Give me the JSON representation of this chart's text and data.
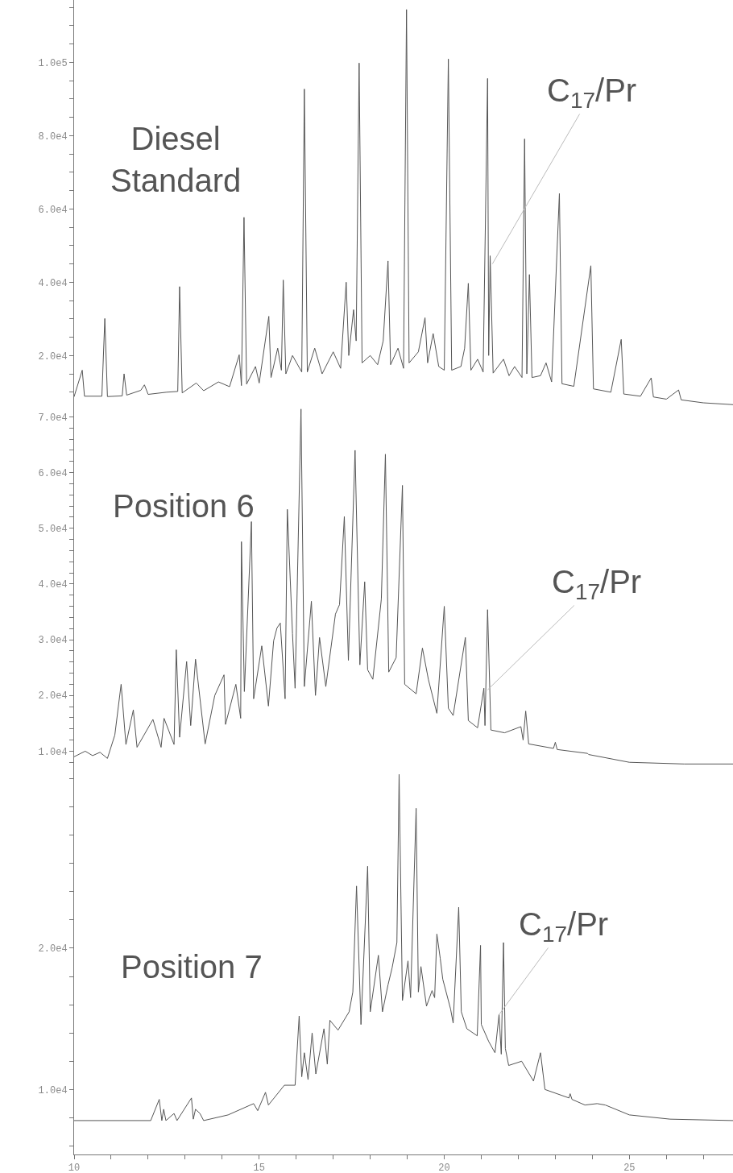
{
  "chart_data": [
    {
      "type": "line",
      "tick_labels": "y",
      "xlim": [
        10,
        27.8
      ],
      "ylim": [
        6000,
        117000
      ],
      "yticks": [
        {
          "value": 10000,
          "label": null
        },
        {
          "value": 15000,
          "label": null
        },
        {
          "value": 20000,
          "label": "2.0e4"
        },
        {
          "value": 25000,
          "label": null
        },
        {
          "value": 30000,
          "label": null
        },
        {
          "value": 35000,
          "label": null
        },
        {
          "value": 40000,
          "label": "4.0e4"
        },
        {
          "value": 45000,
          "label": null
        },
        {
          "value": 50000,
          "label": null
        },
        {
          "value": 55000,
          "label": null
        },
        {
          "value": 60000,
          "label": "6.0e4"
        },
        {
          "value": 65000,
          "label": null
        },
        {
          "value": 70000,
          "label": null
        },
        {
          "value": 75000,
          "label": null
        },
        {
          "value": 80000,
          "label": "8.0e4"
        },
        {
          "value": 85000,
          "label": null
        },
        {
          "value": 90000,
          "label": null
        },
        {
          "value": 95000,
          "label": null
        },
        {
          "value": 100000,
          "label": "1.0e5"
        },
        {
          "value": 105000,
          "label": null
        },
        {
          "value": 110000,
          "label": null
        },
        {
          "value": 115000,
          "label": null
        }
      ],
      "annotations": [
        "Diesel\nStandard",
        {
          "text": "C$_{17}$/Pr",
          "x": 21.3,
          "y": 45000
        }
      ],
      "series": [
        {
          "color": "#555555",
          "x": [
            10.0,
            10.22,
            10.28,
            10.75,
            10.83,
            10.9,
            11.3,
            11.35,
            11.42,
            11.8,
            11.9,
            12.0,
            12.5,
            12.8,
            12.85,
            12.92,
            13.3,
            13.5,
            13.9,
            14.2,
            14.46,
            14.52,
            14.59,
            14.66,
            14.9,
            15.0,
            15.26,
            15.32,
            15.5,
            15.6,
            15.65,
            15.72,
            15.9,
            16.15,
            16.22,
            16.3,
            16.5,
            16.7,
            17.0,
            17.2,
            17.35,
            17.42,
            17.55,
            17.62,
            17.7,
            17.78,
            18.0,
            18.2,
            18.35,
            18.48,
            18.55,
            18.75,
            18.9,
            18.98,
            19.05,
            19.3,
            19.48,
            19.55,
            19.7,
            19.85,
            20.0,
            20.11,
            20.2,
            20.45,
            20.55,
            20.65,
            20.72,
            20.9,
            21.05,
            21.17,
            21.2,
            21.24,
            21.32,
            21.6,
            21.75,
            21.9,
            22.1,
            22.17,
            22.23,
            22.3,
            22.37,
            22.6,
            22.75,
            22.9,
            23.11,
            23.18,
            23.5,
            23.96,
            24.03,
            24.5,
            24.78,
            24.85,
            25.3,
            25.59,
            25.65,
            26.0,
            26.33,
            26.4,
            27.0,
            27.8
          ],
          "values": [
            8800,
            16000,
            8900,
            8900,
            30100,
            8800,
            9000,
            15000,
            9200,
            10500,
            12000,
            9400,
            10000,
            10200,
            38800,
            9800,
            12500,
            10400,
            12800,
            11500,
            20200,
            11800,
            57700,
            12200,
            17000,
            12500,
            30700,
            14000,
            22000,
            16000,
            40600,
            15000,
            20000,
            15500,
            92700,
            15500,
            22000,
            15000,
            21000,
            16500,
            40000,
            20000,
            32500,
            24000,
            99800,
            18000,
            20000,
            17500,
            24000,
            45800,
            17500,
            22000,
            16500,
            114400,
            18000,
            21000,
            30300,
            18000,
            26000,
            17000,
            16000,
            100900,
            16000,
            17000,
            22000,
            39700,
            16000,
            19000,
            15500,
            95600,
            20000,
            47200,
            15200,
            19000,
            14500,
            17000,
            14000,
            79100,
            15000,
            42100,
            14000,
            14500,
            18000,
            12800,
            64200,
            12300,
            11600,
            44500,
            10900,
            10000,
            24400,
            9500,
            8900,
            13900,
            8700,
            8100,
            10600,
            7900,
            7100,
            6600
          ]
        }
      ]
    },
    {
      "type": "line",
      "tick_labels": "y",
      "xlim": [
        10,
        27.8
      ],
      "ylim": [
        7600,
        71800
      ],
      "yticks": [
        {
          "value": 8000,
          "label": null
        },
        {
          "value": 10000,
          "label": "1.0e4"
        },
        {
          "value": 12000,
          "label": null
        },
        {
          "value": 14000,
          "label": null
        },
        {
          "value": 16000,
          "label": null
        },
        {
          "value": 18000,
          "label": null
        },
        {
          "value": 20000,
          "label": "2.0e4"
        },
        {
          "value": 22000,
          "label": null
        },
        {
          "value": 24000,
          "label": null
        },
        {
          "value": 26000,
          "label": null
        },
        {
          "value": 28000,
          "label": null
        },
        {
          "value": 30000,
          "label": "3.0e4"
        },
        {
          "value": 32000,
          "label": null
        },
        {
          "value": 34000,
          "label": null
        },
        {
          "value": 36000,
          "label": null
        },
        {
          "value": 38000,
          "label": null
        },
        {
          "value": 40000,
          "label": "4.0e4"
        },
        {
          "value": 42000,
          "label": null
        },
        {
          "value": 44000,
          "label": null
        },
        {
          "value": 46000,
          "label": null
        },
        {
          "value": 48000,
          "label": null
        },
        {
          "value": 50000,
          "label": "5.0e4"
        },
        {
          "value": 52000,
          "label": null
        },
        {
          "value": 54000,
          "label": null
        },
        {
          "value": 56000,
          "label": null
        },
        {
          "value": 58000,
          "label": null
        },
        {
          "value": 60000,
          "label": "6.0e4"
        },
        {
          "value": 62000,
          "label": null
        },
        {
          "value": 64000,
          "label": null
        },
        {
          "value": 66000,
          "label": null
        },
        {
          "value": 68000,
          "label": null
        },
        {
          "value": 70000,
          "label": "7.0e4"
        }
      ],
      "annotations": [
        "Position 6",
        {
          "text": "C$_{17}$/Pr",
          "x": 21.17,
          "y": 21000
        }
      ],
      "series": [
        {
          "color": "#555555",
          "x": [
            10.0,
            10.3,
            10.5,
            10.7,
            10.9,
            11.1,
            11.27,
            11.4,
            11.6,
            11.7,
            12.13,
            12.35,
            12.43,
            12.7,
            12.76,
            12.85,
            13.04,
            13.15,
            13.28,
            13.54,
            13.8,
            14.05,
            14.09,
            14.37,
            14.5,
            14.52,
            14.6,
            14.79,
            14.85,
            15.07,
            15.25,
            15.39,
            15.48,
            15.57,
            15.7,
            15.76,
            15.9,
            15.97,
            16.13,
            16.22,
            16.41,
            16.52,
            16.63,
            16.8,
            17.06,
            17.17,
            17.3,
            17.41,
            17.59,
            17.72,
            17.85,
            17.93,
            18.07,
            18.3,
            18.41,
            18.5,
            18.7,
            18.87,
            18.93,
            19.24,
            19.41,
            19.57,
            19.8,
            20.0,
            20.11,
            20.24,
            20.57,
            20.65,
            20.9,
            21.07,
            21.1,
            21.17,
            21.26,
            21.63,
            22.07,
            22.13,
            22.2,
            22.28,
            22.95,
            23.0,
            23.05,
            23.87,
            23.9,
            25.0,
            26.48,
            27.8
          ],
          "values": [
            9000,
            10000,
            9200,
            9800,
            8700,
            12900,
            22000,
            11200,
            17400,
            10700,
            15700,
            10700,
            15900,
            11200,
            28200,
            12500,
            26100,
            14600,
            26500,
            11300,
            20000,
            23700,
            14800,
            22000,
            15900,
            47600,
            20700,
            51200,
            19400,
            28900,
            18100,
            29800,
            32100,
            33000,
            19400,
            53400,
            31100,
            21300,
            71400,
            21600,
            36900,
            20000,
            30400,
            21600,
            34600,
            36300,
            52100,
            26300,
            64000,
            25500,
            40400,
            24600,
            22900,
            37300,
            63300,
            24200,
            26800,
            57700,
            22000,
            20300,
            28500,
            22900,
            16800,
            36000,
            17700,
            16400,
            30400,
            15500,
            14200,
            21300,
            14600,
            35400,
            13800,
            13300,
            14400,
            12000,
            17200,
            11300,
            10500,
            11600,
            10300,
            9600,
            9400,
            8000,
            7700,
            7700
          ]
        }
      ]
    },
    {
      "type": "line",
      "xlim": [
        10,
        27.8
      ],
      "xticks": [
        10,
        {
          "value": 11,
          "label": null
        },
        {
          "value": 12,
          "label": null
        },
        {
          "value": 13,
          "label": null
        },
        {
          "value": 14,
          "label": null
        },
        15,
        {
          "value": 16,
          "label": null
        },
        {
          "value": 17,
          "label": null
        },
        {
          "value": 18,
          "label": null
        },
        {
          "value": 19,
          "label": null
        },
        20,
        {
          "value": 21,
          "label": null
        },
        {
          "value": 22,
          "label": null
        },
        {
          "value": 23,
          "label": null
        },
        {
          "value": 24,
          "label": null
        },
        25,
        {
          "value": 26,
          "label": null
        },
        {
          "value": 27,
          "label": null
        }
      ],
      "ylim": [
        5400,
        33000
      ],
      "yticks": [
        {
          "value": 6000,
          "label": null
        },
        {
          "value": 8000,
          "label": null
        },
        {
          "value": 10000,
          "label": "1.0e4"
        },
        {
          "value": 12000,
          "label": null
        },
        {
          "value": 14000,
          "label": null
        },
        {
          "value": 16000,
          "label": null
        },
        {
          "value": 18000,
          "label": null
        },
        {
          "value": 20000,
          "label": "2.0e4"
        },
        {
          "value": 22000,
          "label": null
        },
        {
          "value": 24000,
          "label": null
        },
        {
          "value": 26000,
          "label": null
        },
        {
          "value": 28000,
          "label": null
        },
        {
          "value": 30000,
          "label": null
        },
        {
          "value": 32000,
          "label": null
        }
      ],
      "annotations": [
        "Position 7",
        {
          "text": "C$_{17}$/Pr",
          "x": 21.48,
          "y": 15300
        }
      ],
      "series": [
        {
          "color": "#555555",
          "x": [
            10.0,
            12.07,
            12.3,
            12.37,
            12.42,
            12.48,
            12.7,
            12.78,
            13.17,
            13.22,
            13.28,
            13.4,
            13.5,
            14.16,
            14.85,
            14.96,
            15.17,
            15.25,
            15.68,
            15.97,
            16.08,
            16.15,
            16.22,
            16.32,
            16.43,
            16.53,
            16.75,
            16.84,
            16.91,
            17.13,
            17.43,
            17.53,
            17.63,
            17.75,
            17.93,
            18.0,
            18.22,
            18.33,
            18.48,
            18.59,
            18.72,
            18.78,
            18.87,
            19.02,
            19.09,
            19.24,
            19.3,
            19.37,
            19.52,
            19.67,
            19.74,
            19.8,
            19.89,
            19.96,
            20.17,
            20.24,
            20.39,
            20.46,
            20.61,
            20.89,
            20.98,
            21.0,
            21.2,
            21.37,
            21.48,
            21.54,
            21.6,
            21.65,
            21.74,
            22.09,
            22.41,
            22.6,
            22.72,
            23.37,
            23.4,
            23.45,
            23.8,
            24.13,
            24.35,
            25.0,
            26.1,
            27.8
          ],
          "values": [
            7800,
            7800,
            9300,
            7800,
            8600,
            7800,
            8300,
            7800,
            9400,
            7900,
            8600,
            8300,
            7800,
            8200,
            9000,
            8500,
            9800,
            8900,
            10300,
            10300,
            15200,
            10900,
            12600,
            10700,
            14000,
            11100,
            14300,
            11800,
            14900,
            14200,
            15500,
            16900,
            24400,
            14600,
            25800,
            15500,
            19500,
            15500,
            17400,
            18600,
            20400,
            32300,
            16300,
            19100,
            16500,
            29900,
            16900,
            18700,
            15900,
            17000,
            16500,
            21000,
            19300,
            17800,
            15700,
            14700,
            22900,
            15500,
            14300,
            13800,
            20200,
            14600,
            13400,
            12600,
            15300,
            12500,
            20400,
            12900,
            11700,
            12000,
            10600,
            12600,
            10000,
            9400,
            9700,
            9300,
            8900,
            9000,
            8900,
            8200,
            7900,
            7800
          ]
        }
      ]
    }
  ]
}
